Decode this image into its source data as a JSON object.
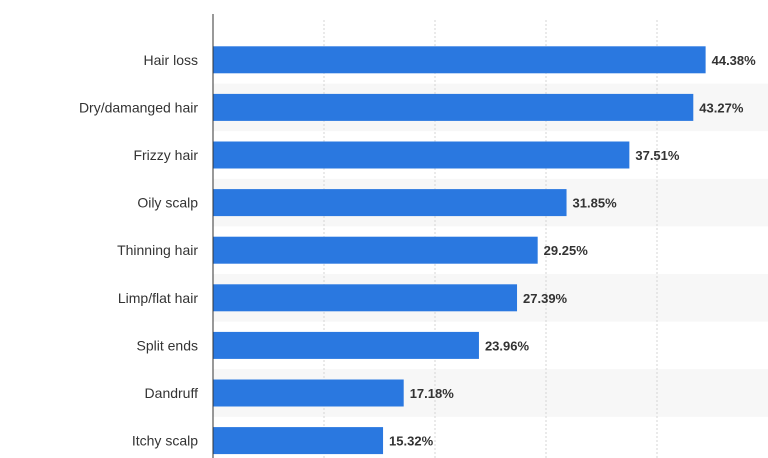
{
  "chart_data": {
    "type": "bar",
    "orientation": "horizontal",
    "categories": [
      "Hair loss",
      "Dry/damanged hair",
      "Frizzy hair",
      "Oily scalp",
      "Thinning hair",
      "Limp/flat hair",
      "Split ends",
      "Dandruff",
      "Itchy scalp"
    ],
    "values": [
      44.38,
      43.27,
      37.51,
      31.85,
      29.25,
      27.39,
      23.96,
      17.18,
      15.32
    ],
    "value_labels": [
      "44.38%",
      "43.27%",
      "37.51%",
      "31.85%",
      "29.25%",
      "27.39%",
      "23.96%",
      "17.18%",
      "15.32%"
    ],
    "title": "",
    "xlabel": "",
    "ylabel": "",
    "xlim": [
      0,
      50
    ],
    "grid": true,
    "legend": "none",
    "bar_color": "#2a78e0",
    "alt_band_color": "#f7f7f7",
    "grid_color": "#d6d6d6",
    "text_color": "#333333"
  }
}
